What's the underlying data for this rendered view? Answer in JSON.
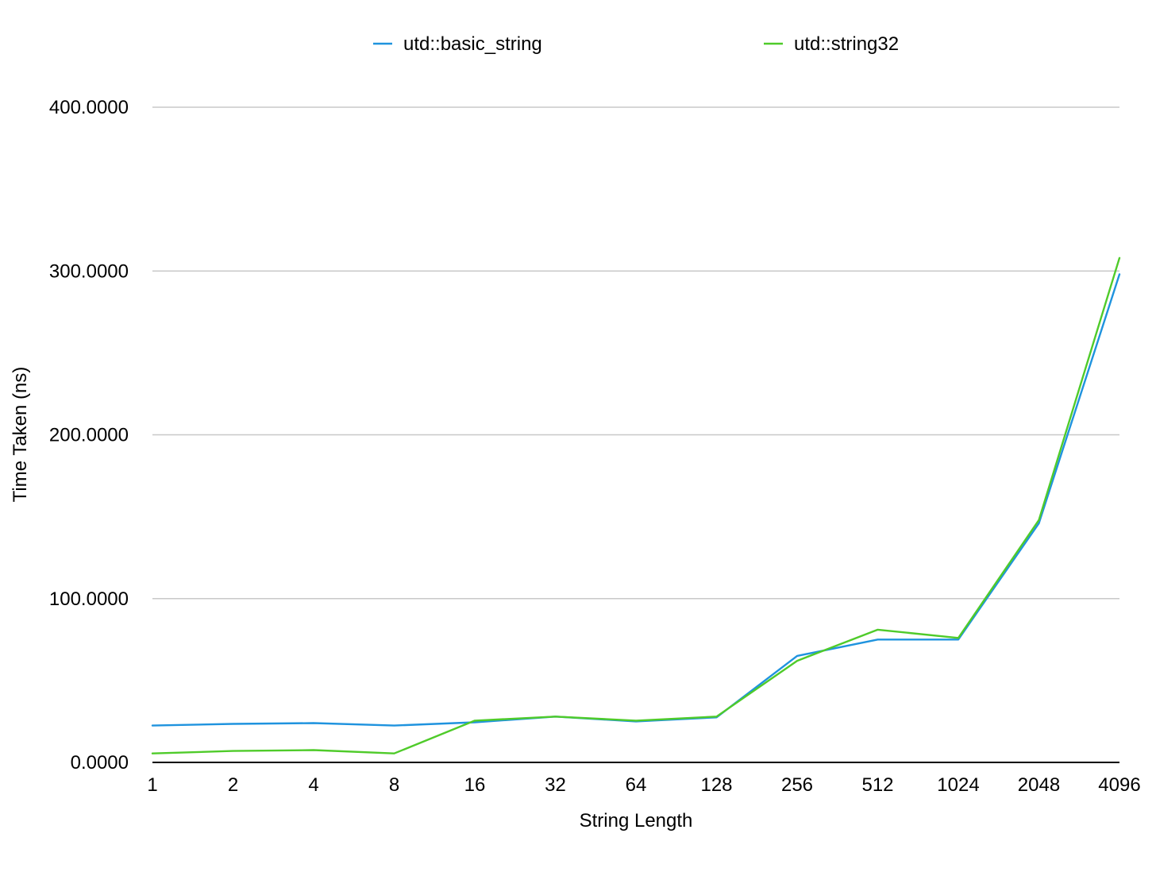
{
  "chart_data": {
    "type": "line",
    "title": "",
    "xlabel": "String Length",
    "ylabel": "Time Taken (ns)",
    "categories": [
      "1",
      "2",
      "4",
      "8",
      "16",
      "32",
      "64",
      "128",
      "256",
      "512",
      "1024",
      "2048",
      "4096"
    ],
    "ylim": [
      0,
      400
    ],
    "yticks": [
      "0.0000",
      "100.0000",
      "200.0000",
      "300.0000",
      "400.0000"
    ],
    "grid": true,
    "legend_position": "top",
    "series": [
      {
        "name": "utd::basic_string",
        "color": "#1f93de",
        "values": [
          22.5,
          23.5,
          24.0,
          22.5,
          24.5,
          28.0,
          25.0,
          27.5,
          65.0,
          75.0,
          75.0,
          146.0,
          298.0
        ]
      },
      {
        "name": "utd::string32",
        "color": "#4fcb2a",
        "values": [
          5.5,
          7.0,
          7.5,
          5.5,
          25.5,
          28.0,
          25.5,
          28.0,
          62.0,
          81.0,
          76.0,
          148.0,
          308.0
        ]
      }
    ]
  }
}
